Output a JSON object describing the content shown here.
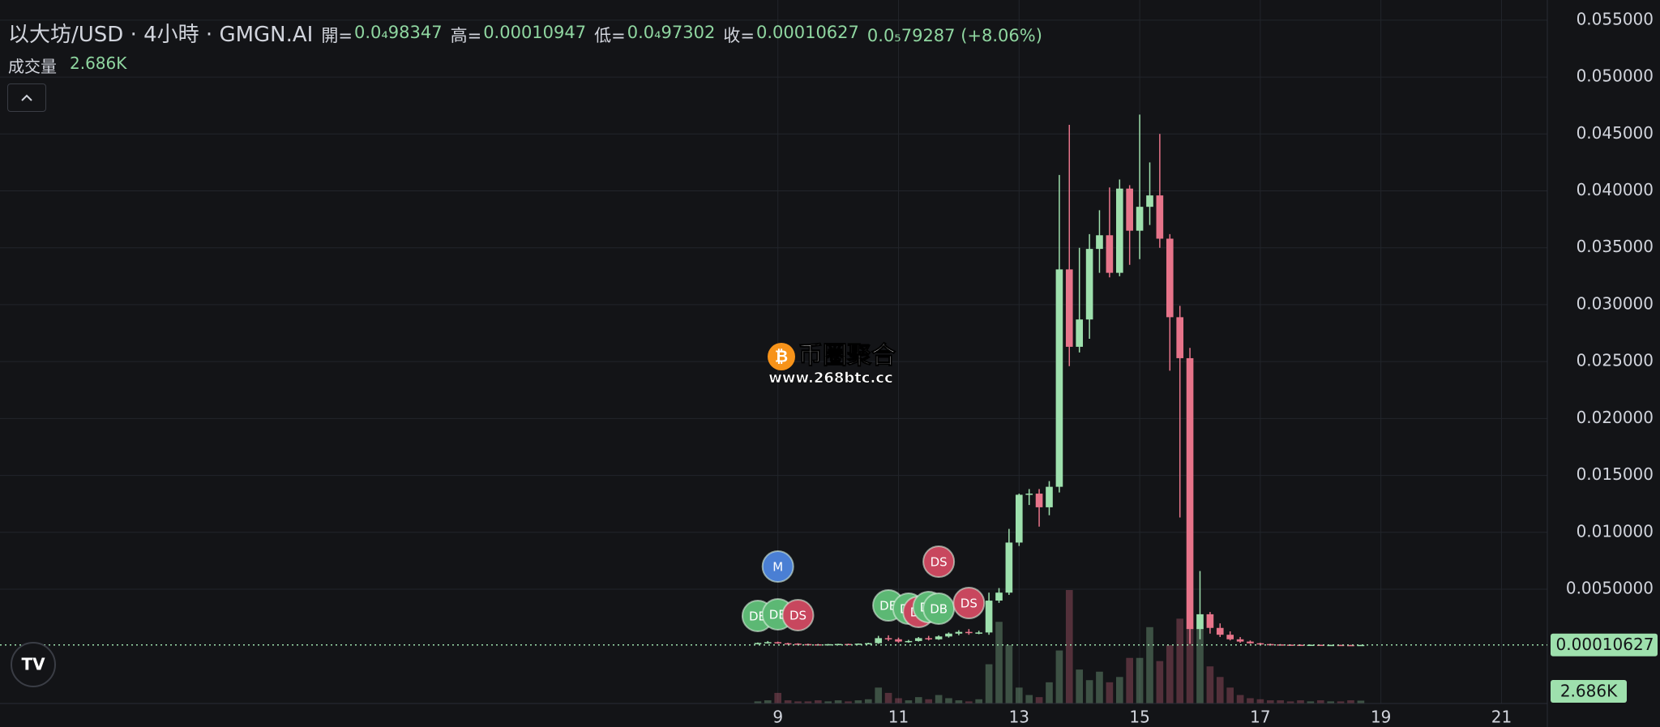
{
  "header": {
    "title": "以大坊/USD · 4小時 · GMGN.AI",
    "open_label": "開=",
    "open": "0.0₄98347",
    "high_label": "高=",
    "high": "0.00010947",
    "low_label": "低=",
    "low": "0.0₄97302",
    "close_label": "收=",
    "close": "0.00010627",
    "change": "0.0₅79287 (+8.06%)",
    "volume_label": "成交量",
    "volume_value": "2.686K"
  },
  "watermark": {
    "title": "币圈聚合",
    "url": "www.268btc.cc"
  },
  "chart_data": {
    "type": "candlestick",
    "up_color": "#9ee0ad",
    "down_color": "#e7748a",
    "grid": true,
    "x": [
      8.667,
      8.833,
      9,
      9.167,
      9.333,
      9.5,
      9.667,
      9.833,
      10,
      10.167,
      10.333,
      10.5,
      10.667,
      10.833,
      11,
      11.167,
      11.333,
      11.5,
      11.667,
      11.833,
      12,
      12.167,
      12.333,
      12.5,
      12.667,
      12.833,
      13,
      13.167,
      13.333,
      13.5,
      13.667,
      13.833,
      14,
      14.167,
      14.333,
      14.5,
      14.667,
      14.833,
      15,
      15.167,
      15.333,
      15.5,
      15.667,
      15.833,
      16,
      16.167,
      16.333,
      16.5,
      16.667,
      16.833,
      17,
      17.167,
      17.333,
      17.5,
      17.667,
      17.833,
      18,
      18.167,
      18.333,
      18.5,
      18.667
    ],
    "open": [
      0.0002,
      0.00028,
      0.00035,
      0.00025,
      0.00022,
      0.00018,
      0.00016,
      0.00014,
      0.00017,
      0.00019,
      0.00018,
      0.00022,
      0.00026,
      0.0007,
      0.0006,
      0.0004,
      0.00045,
      0.0007,
      0.0006,
      0.00085,
      0.0011,
      0.00125,
      0.00115,
      0.0012,
      0.004,
      0.0047,
      0.0091,
      0.0133,
      0.0134,
      0.0122,
      0.014,
      0.0331,
      0.0263,
      0.0287,
      0.0349,
      0.0361,
      0.0328,
      0.0402,
      0.0365,
      0.0386,
      0.0396,
      0.0358,
      0.0289,
      0.0253,
      0.0015,
      0.0028,
      0.0016,
      0.001,
      0.0006,
      0.0004,
      0.00025,
      0.00018,
      0.00015,
      0.00013,
      0.00012,
      0.00011,
      0.00012,
      0.0001,
      0.00011,
      0.0001,
      9.8347e-05
    ],
    "high": [
      0.00032,
      0.00045,
      0.0004,
      0.0003,
      0.00026,
      0.00022,
      0.0002,
      0.00019,
      0.00021,
      0.00022,
      0.00024,
      0.0003,
      0.0009,
      0.00095,
      0.00075,
      0.00055,
      0.0008,
      0.0009,
      0.00095,
      0.0012,
      0.0014,
      0.0015,
      0.00135,
      0.0047,
      0.0051,
      0.0103,
      0.0134,
      0.0138,
      0.0138,
      0.0145,
      0.0414,
      0.0458,
      0.035,
      0.0362,
      0.0383,
      0.0403,
      0.041,
      0.0405,
      0.0467,
      0.0425,
      0.045,
      0.0362,
      0.0299,
      0.0262,
      0.0066,
      0.003,
      0.002,
      0.0013,
      0.0008,
      0.0005,
      0.0003,
      0.00022,
      0.00018,
      0.00016,
      0.00015,
      0.00014,
      0.00013,
      0.00012,
      0.00012,
      0.00011,
      0.00010947
    ],
    "low": [
      0.00015,
      0.00022,
      0.0002,
      0.00018,
      0.00015,
      0.00014,
      0.00012,
      0.00013,
      0.00015,
      0.00016,
      0.00017,
      0.0002,
      0.0002,
      0.00045,
      0.0003,
      0.0003,
      0.0004,
      0.0005,
      0.00055,
      0.00075,
      0.00095,
      0.001,
      0.00105,
      0.001,
      0.0038,
      0.0045,
      0.0088,
      0.0124,
      0.0105,
      0.0115,
      0.0135,
      0.0246,
      0.0258,
      0.027,
      0.0328,
      0.0324,
      0.0325,
      0.0335,
      0.034,
      0.037,
      0.035,
      0.0242,
      0.0113,
      0.0002,
      0.0006,
      0.0011,
      0.0008,
      0.0005,
      0.0003,
      0.0002,
      0.00015,
      0.00012,
      0.00011,
      0.0001,
      0.0001,
      9e-05,
      9e-05,
      9e-05,
      9e-05,
      9e-05,
      9.7302e-05
    ],
    "close": [
      0.00028,
      0.00035,
      0.00025,
      0.00022,
      0.00018,
      0.00016,
      0.00014,
      0.00017,
      0.00019,
      0.00018,
      0.00022,
      0.00026,
      0.0007,
      0.0006,
      0.0004,
      0.00045,
      0.0007,
      0.0006,
      0.00085,
      0.0011,
      0.00125,
      0.00115,
      0.0012,
      0.004,
      0.0047,
      0.0091,
      0.0133,
      0.0134,
      0.0122,
      0.014,
      0.0331,
      0.0263,
      0.0287,
      0.0349,
      0.0361,
      0.0328,
      0.0402,
      0.0365,
      0.0386,
      0.0396,
      0.0358,
      0.0289,
      0.0253,
      0.0015,
      0.0028,
      0.0016,
      0.001,
      0.0006,
      0.0004,
      0.00025,
      0.00018,
      0.00015,
      0.00013,
      0.00012,
      0.00011,
      0.00012,
      0.0001,
      0.00011,
      0.0001,
      9.8347e-05,
      0.00010627
    ],
    "volume": [
      2000,
      3000,
      10000,
      3000,
      2000,
      2000,
      3000,
      2000,
      3000,
      2000,
      3000,
      4000,
      15000,
      10000,
      5000,
      3000,
      6000,
      4000,
      8000,
      5000,
      3000,
      2000,
      4000,
      37000,
      77000,
      55000,
      15000,
      8000,
      6000,
      20000,
      50000,
      107000,
      32000,
      22000,
      30000,
      20000,
      25000,
      43000,
      43000,
      72000,
      40000,
      55000,
      80000,
      72000,
      72000,
      35000,
      25000,
      15000,
      8000,
      5000,
      4000,
      3000,
      3000,
      2000,
      3000,
      2000,
      3000,
      2000,
      2000,
      3000,
      2686
    ],
    "last_price": {
      "value": 0.00010627,
      "label": "0.00010627"
    },
    "xlim": [
      -3.9,
      21.76
    ],
    "xticks": [
      9,
      11,
      13,
      15,
      17,
      19,
      21
    ],
    "ylim": [
      -0.00504,
      0.05677
    ],
    "yticks": [
      {
        "value": 0.005,
        "label": "0.0050000"
      },
      {
        "value": 0.01,
        "label": "0.010000"
      },
      {
        "value": 0.015,
        "label": "0.015000"
      },
      {
        "value": 0.02,
        "label": "0.020000"
      },
      {
        "value": 0.025,
        "label": "0.025000"
      },
      {
        "value": 0.03,
        "label": "0.030000"
      },
      {
        "value": 0.035,
        "label": "0.035000"
      },
      {
        "value": 0.04,
        "label": "0.040000"
      },
      {
        "value": 0.045,
        "label": "0.045000"
      },
      {
        "value": 0.05,
        "label": "0.050000"
      },
      {
        "value": 0.055,
        "label": "0.055000"
      }
    ],
    "markers": [
      {
        "label": "DB",
        "x": 8.667,
        "color": "#5cb874"
      },
      {
        "label": "DB",
        "x": 9,
        "color": "#5cb874"
      },
      {
        "label": "DS",
        "x": 9.333,
        "color": "#c8475e"
      },
      {
        "label": "M",
        "x": 9,
        "color": "#4a7fd4"
      },
      {
        "label": "DB",
        "x": 10.833,
        "color": "#5cb874"
      },
      {
        "label": "DB",
        "x": 11.167,
        "color": "#5cb874"
      },
      {
        "label": "DS",
        "x": 11.333,
        "color": "#c8475e"
      },
      {
        "label": "DB",
        "x": 11.5,
        "color": "#5cb874"
      },
      {
        "label": "DB",
        "x": 11.667,
        "color": "#5cb874"
      },
      {
        "label": "DS",
        "x": 11.667,
        "color": "#c8475e"
      },
      {
        "label": "DS",
        "x": 12.167,
        "color": "#c8475e"
      }
    ]
  }
}
